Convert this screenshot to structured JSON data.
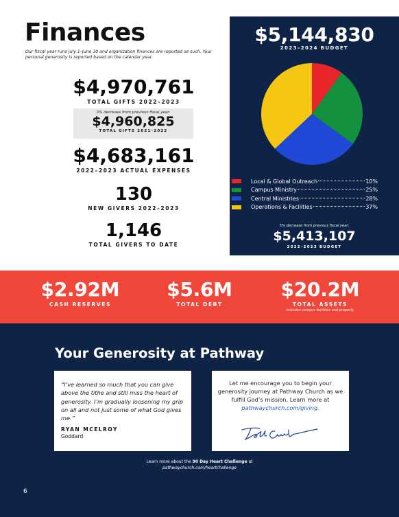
{
  "title": "Finances",
  "intro": "Our fiscal year runs July 1–June 30 and organization finances are reported as such. Your personal generosity is reported based on the calendar year.",
  "stats": {
    "total_gifts": {
      "value": "$4,970,761",
      "label": "TOTAL GIFTS 2022–2023"
    },
    "previous": {
      "note": "0% decrease from previous fiscal year:",
      "value": "$4,960,825",
      "label": "TOTAL GIFTS 2021–2022"
    },
    "expenses": {
      "value": "$4,683,161",
      "label": "2022–2023 ACTUAL EXPENSES"
    },
    "new_givers": {
      "value": "130",
      "label": "NEW GIVERS 2022–2023"
    },
    "total_givers": {
      "value": "1,146",
      "label": "TOTAL GIVERS TO DATE"
    }
  },
  "budget": {
    "total": "$5,144,830",
    "label": "2023–2024 BUDGET",
    "prev_note": "5% decrease from previous fiscal year:",
    "prev_total": "$5,413,107",
    "prev_label": "2022–2023 BUDGET"
  },
  "chart_data": {
    "type": "pie",
    "title": "",
    "slices": [
      {
        "label": "Local & Global Outreach",
        "display": "10%",
        "value": 10,
        "color": "#e8262a"
      },
      {
        "label": "Campus Ministry",
        "display": "25%",
        "value": 25,
        "color": "#14913c"
      },
      {
        "label": "Central Ministries",
        "display": "28%",
        "value": 28,
        "color": "#1f48d6"
      },
      {
        "label": "Operations & Facilities",
        "display": "37%",
        "value": 37,
        "color": "#f5c713"
      }
    ],
    "legend_position": "below"
  },
  "band": [
    {
      "value": "$2.92M",
      "label": "CASH RESERVES",
      "sub": ""
    },
    {
      "value": "$5.6M",
      "label": "TOTAL DEBT",
      "sub": ""
    },
    {
      "value": "$20.2M",
      "label": "TOTAL ASSETS",
      "sub": "Includes campus facilities and property"
    }
  ],
  "generosity": {
    "title": "Your Generosity at Pathway",
    "quote": "“I’ve learned so much that you can give above the tithe and still miss the heart of generosity. I’m gradually loosening my grip on all and not just some of what God gives me.”",
    "quote_name": "RYAN MCELROY",
    "quote_sub": "Goddard",
    "message": "Let me encourage you to begin your generosity journey at Pathway Church as we fulfill God’s mission. Learn more at",
    "message_link": "pathwaychurch.com/giving.",
    "signature": "Todd Carter",
    "footer_text": "Learn more about the",
    "footer_bold": "90 Day Heart Challenge",
    "footer_after": "at",
    "footer_link": "pathwaychurch.com/heartchallenge"
  },
  "page_number": "6",
  "colors": {
    "navy": "#0f2347",
    "red": "#f1473a",
    "link": "#1f5fc9"
  }
}
